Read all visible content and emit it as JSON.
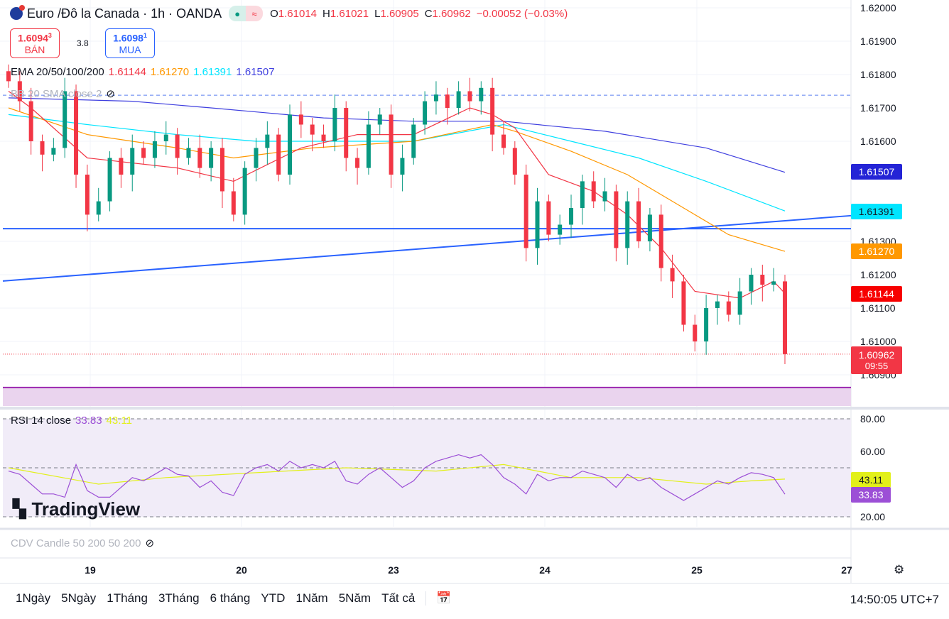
{
  "header": {
    "title": "Euro /Đô la Canada · 1h · OANDA",
    "o_label": "O",
    "o": "1.61014",
    "h_label": "H",
    "h": "1.61021",
    "l_label": "L",
    "l": "1.60905",
    "c_label": "C",
    "c": "1.60962",
    "change": "−0.00052 (−0.03%)"
  },
  "trade": {
    "sell_price": "1.6094",
    "sell_sup": "3",
    "sell_label": "BÁN",
    "spread": "3.8",
    "buy_price": "1.6098",
    "buy_sup": "1",
    "buy_label": "MUA"
  },
  "legend": {
    "ema_label": "EMA 20/50/100/200",
    "ema20": "1.61144",
    "ema50": "1.61270",
    "ema100": "1.61391",
    "ema200": "1.61507",
    "bb_label": "BB 20 SMA close 2",
    "rsi_label": "RSI 14 close",
    "rsi": "33.83",
    "rsi_ma": "43.11",
    "cdv_label": "CDV Candle 50 200 50 200"
  },
  "price_axis": [
    "1.62000",
    "1.61900",
    "1.61800",
    "1.61700",
    "1.61600",
    "1.61300",
    "1.61200",
    "1.61100",
    "1.61000",
    "1.60900"
  ],
  "price_labels": {
    "ema200": "1.61507",
    "ema100": "1.61391",
    "ema50": "1.61270",
    "ema20": "1.61144",
    "last": "1.60962",
    "countdown": "09:55"
  },
  "rsi_axis": [
    "80.00",
    "60.00",
    "20.00"
  ],
  "time_axis": [
    "19",
    "20",
    "23",
    "24",
    "25",
    "27"
  ],
  "ranges": [
    "1Ngày",
    "5Ngày",
    "1Tháng",
    "3Tháng",
    "6 tháng",
    "YTD",
    "1Năm",
    "5Năm",
    "Tất cả"
  ],
  "clock": "14:50:05 UTC+7",
  "watermark": "TradingView",
  "colors": {
    "up": "#089981",
    "down": "#f23645",
    "ema20": "#f23645",
    "ema50": "#ff9800",
    "ema100": "#00e5ff",
    "ema200": "#3f3fdf",
    "rsi": "#9c4fd6",
    "rsi_ma": "#e2f01a",
    "trend": "#2962ff"
  },
  "chart_data": {
    "type": "candlestick",
    "ylim": [
      1.6087,
      1.62
    ],
    "closes": [
      1.6178,
      1.6172,
      1.616,
      1.6156,
      1.6158,
      1.6175,
      1.615,
      1.6138,
      1.6142,
      1.6155,
      1.615,
      1.6158,
      1.6155,
      1.616,
      1.6162,
      1.6155,
      1.6158,
      1.6152,
      1.6158,
      1.6145,
      1.6138,
      1.6152,
      1.6158,
      1.6162,
      1.615,
      1.6168,
      1.6165,
      1.6162,
      1.616,
      1.617,
      1.6155,
      1.6152,
      1.6165,
      1.6168,
      1.615,
      1.6155,
      1.6165,
      1.6172,
      1.6174,
      1.617,
      1.6175,
      1.6172,
      1.6176,
      1.6162,
      1.6158,
      1.615,
      1.6128,
      1.6142,
      1.6132,
      1.6135,
      1.614,
      1.6148,
      1.6142,
      1.6145,
      1.6128,
      1.6142,
      1.613,
      1.6138,
      1.6122,
      1.6118,
      1.6105,
      1.61,
      1.611,
      1.6112,
      1.6108,
      1.6115,
      1.612,
      1.6117,
      1.6118,
      1.60962
    ],
    "ema20": [
      [
        0,
        1.6175
      ],
      [
        2,
        1.617
      ],
      [
        7,
        1.6155
      ],
      [
        15,
        1.6152
      ],
      [
        20,
        1.6148
      ],
      [
        26,
        1.6158
      ],
      [
        31,
        1.6162
      ],
      [
        36,
        1.6162
      ],
      [
        41,
        1.617
      ],
      [
        43,
        1.6168
      ],
      [
        45,
        1.6164
      ],
      [
        48,
        1.615
      ],
      [
        52,
        1.6145
      ],
      [
        55,
        1.6138
      ],
      [
        58,
        1.6128
      ],
      [
        61,
        1.6115
      ],
      [
        65,
        1.6113
      ],
      [
        68,
        1.6118
      ],
      [
        69,
        1.61144
      ]
    ],
    "ema50": [
      [
        0,
        1.617
      ],
      [
        7,
        1.6162
      ],
      [
        15,
        1.6158
      ],
      [
        20,
        1.6155
      ],
      [
        27,
        1.6158
      ],
      [
        36,
        1.616
      ],
      [
        43,
        1.6165
      ],
      [
        45,
        1.6163
      ],
      [
        50,
        1.6157
      ],
      [
        55,
        1.615
      ],
      [
        60,
        1.614
      ],
      [
        64,
        1.6132
      ],
      [
        69,
        1.6127
      ]
    ],
    "ema100": [
      [
        0,
        1.6168
      ],
      [
        7,
        1.6165
      ],
      [
        15,
        1.6162
      ],
      [
        22,
        1.616
      ],
      [
        36,
        1.616
      ],
      [
        44,
        1.6165
      ],
      [
        50,
        1.616
      ],
      [
        56,
        1.6155
      ],
      [
        62,
        1.6148
      ],
      [
        69,
        1.61391
      ]
    ],
    "ema200": [
      [
        0,
        1.6173
      ],
      [
        11,
        1.6172
      ],
      [
        18,
        1.617
      ],
      [
        28,
        1.6167
      ],
      [
        36,
        1.6166
      ],
      [
        44,
        1.6166
      ],
      [
        53,
        1.6163
      ],
      [
        62,
        1.6158
      ],
      [
        69,
        1.61507
      ]
    ],
    "hline": 1.61338,
    "trendline": [
      1.61181,
      1.61377
    ],
    "dashed_level": 1.61738,
    "support": 1.60862,
    "rsi": [
      48,
      46,
      40,
      34,
      34,
      32,
      52,
      36,
      32,
      32,
      38,
      44,
      42,
      46,
      50,
      46,
      45,
      38,
      42,
      35,
      33,
      46,
      50,
      52,
      48,
      54,
      50,
      52,
      50,
      54,
      42,
      40,
      46,
      50,
      44,
      38,
      42,
      50,
      54,
      56,
      58,
      56,
      58,
      52,
      44,
      40,
      34,
      46,
      42,
      44,
      44,
      48,
      46,
      44,
      38,
      46,
      42,
      44,
      38,
      34,
      30,
      34,
      38,
      42,
      40,
      44,
      47,
      46,
      44,
      33.83
    ],
    "rsi_ma": [
      [
        0,
        50
      ],
      [
        8,
        40
      ],
      [
        14,
        44
      ],
      [
        22,
        47
      ],
      [
        30,
        50
      ],
      [
        38,
        48
      ],
      [
        44,
        52
      ],
      [
        50,
        44
      ],
      [
        56,
        44
      ],
      [
        62,
        40
      ],
      [
        66,
        42
      ],
      [
        69,
        43.11
      ]
    ],
    "rsi_ylim": [
      20,
      80
    ]
  }
}
